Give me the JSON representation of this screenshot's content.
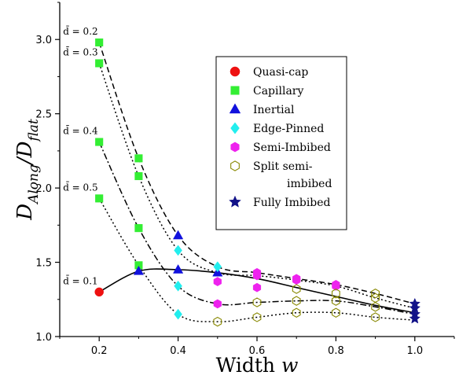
{
  "chart_data": {
    "type": "line",
    "title": "",
    "xlabel": "Width w",
    "ylabel": "D_Along/D_flat",
    "xlim": [
      0.1,
      1.1
    ],
    "ylim": [
      1.0,
      3.25
    ],
    "xticks": [
      "0.2",
      "0.4",
      "0.6",
      "0.8",
      "1.0"
    ],
    "xtick_values": [
      0.2,
      0.4,
      0.6,
      0.8,
      1.0
    ],
    "yticks": [
      "1.0",
      "1.5",
      "2.0",
      "2.5",
      "3.0"
    ],
    "ytick_values": [
      1.0,
      1.5,
      2.0,
      2.5,
      3.0
    ],
    "grid": false,
    "legend_position": "top-right",
    "lines": [
      {
        "label": "d̄ = 0.2",
        "style": "dashed",
        "color": "#000000",
        "x": [
          0.2,
          0.3,
          0.4,
          0.5,
          0.6,
          0.7,
          0.8,
          0.9,
          1.0
        ],
        "y": [
          2.98,
          2.2,
          1.68,
          1.47,
          1.43,
          1.39,
          1.35,
          1.29,
          1.22
        ]
      },
      {
        "label": "d̄ = 0.3",
        "style": "dotted",
        "color": "#000000",
        "x": [
          0.2,
          0.3,
          0.4,
          0.5,
          0.6,
          0.7,
          0.8,
          0.9,
          1.0
        ],
        "y": [
          2.84,
          2.08,
          1.58,
          1.43,
          1.41,
          1.38,
          1.34,
          1.26,
          1.19
        ]
      },
      {
        "label": "d̄ = 0.4",
        "style": "dashdot",
        "color": "#000000",
        "x": [
          0.2,
          0.3,
          0.4,
          0.5,
          0.6,
          0.7,
          0.8,
          0.9,
          1.0
        ],
        "y": [
          2.31,
          1.73,
          1.34,
          1.22,
          1.23,
          1.24,
          1.24,
          1.2,
          1.15
        ]
      },
      {
        "label": "d̄ = 0.5",
        "style": "dotted",
        "color": "#000000",
        "x": [
          0.2,
          0.3,
          0.4,
          0.5,
          0.6,
          0.7,
          0.8,
          0.9,
          1.0
        ],
        "y": [
          1.93,
          1.48,
          1.15,
          1.1,
          1.13,
          1.16,
          1.16,
          1.13,
          1.11
        ]
      },
      {
        "label": "d̄ = 0.1",
        "style": "solid",
        "color": "#000000",
        "x": [
          0.2,
          0.3,
          0.4,
          0.5,
          0.6,
          0.7,
          0.8,
          0.9,
          1.0
        ],
        "y": [
          1.3,
          1.44,
          1.45,
          1.43,
          1.39,
          1.33,
          1.27,
          1.21,
          1.16
        ]
      }
    ],
    "series": [
      {
        "name": "Quasi-cap",
        "marker": "circle",
        "color": "#ee1111",
        "filled": true,
        "points": [
          {
            "x": 0.2,
            "y": 1.3
          }
        ]
      },
      {
        "name": "Capillary",
        "marker": "square",
        "color": "#33ee33",
        "filled": true,
        "points": [
          {
            "x": 0.2,
            "y": 2.98
          },
          {
            "x": 0.2,
            "y": 2.84
          },
          {
            "x": 0.2,
            "y": 2.31
          },
          {
            "x": 0.2,
            "y": 1.93
          },
          {
            "x": 0.3,
            "y": 2.2
          },
          {
            "x": 0.3,
            "y": 2.08
          },
          {
            "x": 0.3,
            "y": 1.73
          },
          {
            "x": 0.3,
            "y": 1.48
          }
        ]
      },
      {
        "name": "Inertial",
        "marker": "triangle",
        "color": "#1111dd",
        "filled": true,
        "points": [
          {
            "x": 0.3,
            "y": 1.44
          },
          {
            "x": 0.4,
            "y": 1.68
          },
          {
            "x": 0.4,
            "y": 1.45
          },
          {
            "x": 0.5,
            "y": 1.43
          }
        ]
      },
      {
        "name": "Edge-Pinned",
        "marker": "diamond",
        "color": "#22eeee",
        "filled": true,
        "points": [
          {
            "x": 0.4,
            "y": 1.58
          },
          {
            "x": 0.4,
            "y": 1.34
          },
          {
            "x": 0.4,
            "y": 1.15
          },
          {
            "x": 0.5,
            "y": 1.47
          }
        ]
      },
      {
        "name": "Semi-Imbibed",
        "marker": "hexagon",
        "color": "#ee22ee",
        "filled": true,
        "points": [
          {
            "x": 0.5,
            "y": 1.37
          },
          {
            "x": 0.5,
            "y": 1.22
          },
          {
            "x": 0.6,
            "y": 1.43
          },
          {
            "x": 0.6,
            "y": 1.41
          },
          {
            "x": 0.6,
            "y": 1.33
          },
          {
            "x": 0.7,
            "y": 1.39
          },
          {
            "x": 0.7,
            "y": 1.38
          },
          {
            "x": 0.8,
            "y": 1.35
          },
          {
            "x": 0.8,
            "y": 1.34
          }
        ]
      },
      {
        "name": "Split semi-imbibed",
        "legend_lines": [
          "Split semi-",
          "imbibed"
        ],
        "marker": "hexagon",
        "color": "#888800",
        "filled": false,
        "points": [
          {
            "x": 0.5,
            "y": 1.1
          },
          {
            "x": 0.6,
            "y": 1.23
          },
          {
            "x": 0.6,
            "y": 1.13
          },
          {
            "x": 0.7,
            "y": 1.32
          },
          {
            "x": 0.7,
            "y": 1.24
          },
          {
            "x": 0.7,
            "y": 1.16
          },
          {
            "x": 0.8,
            "y": 1.29
          },
          {
            "x": 0.8,
            "y": 1.24
          },
          {
            "x": 0.8,
            "y": 1.16
          },
          {
            "x": 0.9,
            "y": 1.29
          },
          {
            "x": 0.9,
            "y": 1.26
          },
          {
            "x": 0.9,
            "y": 1.2
          },
          {
            "x": 0.9,
            "y": 1.13
          }
        ]
      },
      {
        "name": "Fully Imbibed",
        "marker": "star",
        "color": "#111188",
        "filled": true,
        "points": [
          {
            "x": 1.0,
            "y": 1.22
          },
          {
            "x": 1.0,
            "y": 1.19
          },
          {
            "x": 1.0,
            "y": 1.15
          },
          {
            "x": 1.0,
            "y": 1.12
          }
        ]
      }
    ],
    "annotations": [
      {
        "text": "d̄ = 0.2",
        "x": 0.2,
        "y": 2.98
      },
      {
        "text": "d̄ = 0.3",
        "x": 0.2,
        "y": 2.84
      },
      {
        "text": "d̄ = 0.4",
        "x": 0.2,
        "y": 2.31
      },
      {
        "text": "d̄ = 0.5",
        "x": 0.2,
        "y": 1.93
      },
      {
        "text": "d̄ = 0.1",
        "x": 0.2,
        "y": 1.3
      }
    ]
  }
}
